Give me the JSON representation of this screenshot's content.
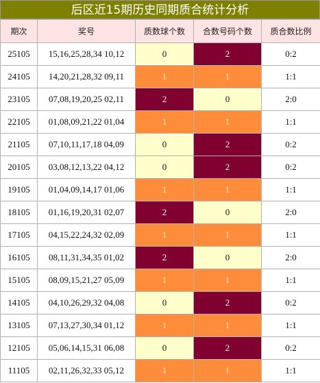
{
  "title": "后区近15期历史同期质合统计分析",
  "table": {
    "headers": [
      "期次",
      "奖号",
      "质数球个数",
      "合数号码个数",
      "质合数比例"
    ],
    "rows": [
      [
        "25105",
        "15,16,25,28,34 10,12",
        "0",
        "2",
        "0:2"
      ],
      [
        "24105",
        "14,20,21,28,32 09,11",
        "1",
        "1",
        "1:1"
      ],
      [
        "23105",
        "07,08,19,20,25 02,11",
        "2",
        "0",
        "2:0"
      ],
      [
        "22105",
        "01,08,09,21,22 01,04",
        "1",
        "1",
        "1:1"
      ],
      [
        "21105",
        "07,10,11,17,18 04,09",
        "0",
        "2",
        "0:2"
      ],
      [
        "20105",
        "03,08,12,13,22 04,12",
        "0",
        "2",
        "0:2"
      ],
      [
        "19105",
        "01,04,09,14,17 01,06",
        "1",
        "1",
        "1:1"
      ],
      [
        "18105",
        "01,16,19,20,31 02,07",
        "2",
        "0",
        "2:0"
      ],
      [
        "17105",
        "04,15,22,24,32 02,09",
        "1",
        "1",
        "1:1"
      ],
      [
        "16105",
        "08,11,31,34,35 01,02",
        "2",
        "0",
        "2:0"
      ],
      [
        "15105",
        "08,09,15,21,27 05,09",
        "1",
        "1",
        "1:1"
      ],
      [
        "14105",
        "04,10,26,29,32 04,08",
        "0",
        "2",
        "0:2"
      ],
      [
        "13105",
        "07,13,27,30,34 01,12",
        "1",
        "1",
        "1:1"
      ],
      [
        "12105",
        "05,06,14,15,31 06,08",
        "0",
        "2",
        "0:2"
      ],
      [
        "11105",
        "02,11,26,32,33 05,12",
        "1",
        "1",
        "1:1"
      ]
    ]
  }
}
